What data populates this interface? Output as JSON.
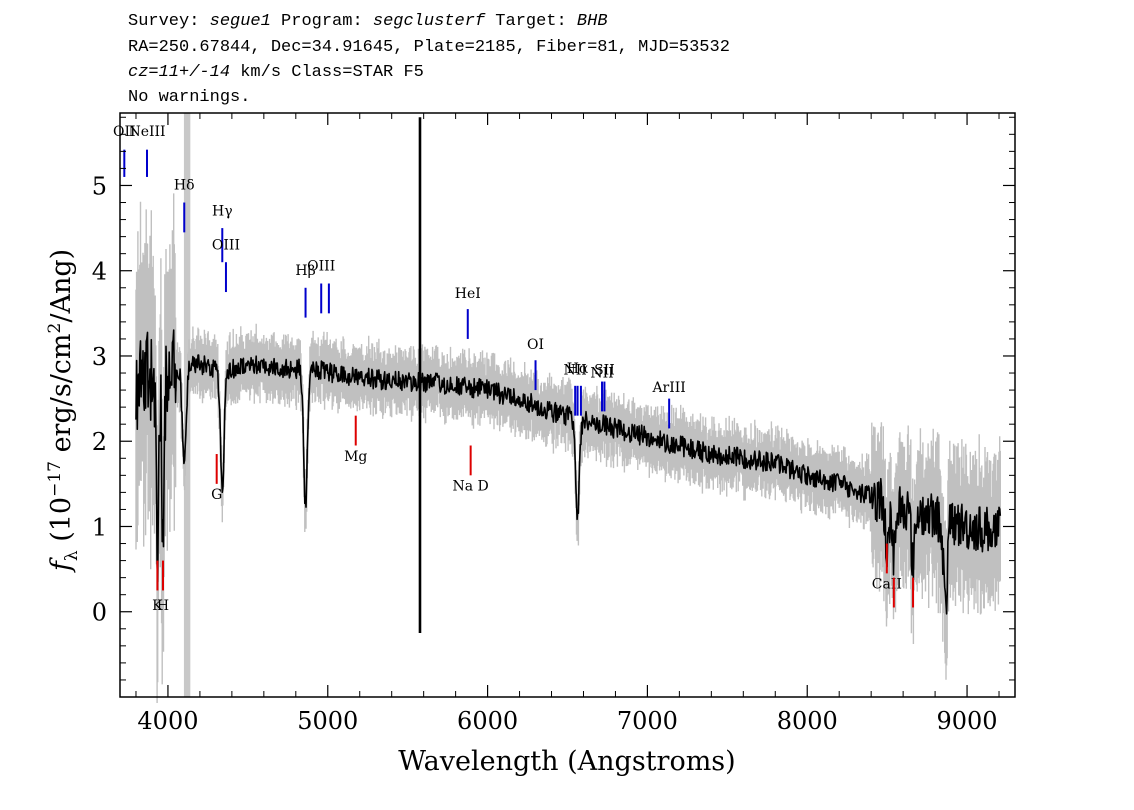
{
  "header": {
    "survey_label": "Survey: ",
    "survey": "segue1",
    "program_label": " Program: ",
    "program": "segclusterf",
    "target_label": " Target: ",
    "target": "BHB",
    "line2": "RA=250.67844, Dec=34.91645, Plate=2185, Fiber=81, MJD=53532",
    "cz": "cz=11+/-14",
    "cz_rest": " km/s Class=STAR F5",
    "warnings": "No warnings."
  },
  "colors": {
    "flux": "#000000",
    "error": "#c0c0c0",
    "emission": "#0000cc",
    "absorption": "#dd0000",
    "mask": "#c8c8c8"
  },
  "chart_data": {
    "type": "line",
    "title": "",
    "xlabel": "Wavelength (Angstroms)",
    "ylabel": "f_λ (10^-17 erg/s/cm^2/Ang)",
    "ylabel_parts": {
      "f": "f",
      "sub": "λ",
      "pre": " (10",
      "exp": "−17",
      "mid": " erg/s/cm",
      "exp2": "2",
      "post": "/Ang)"
    },
    "xlim": [
      3700,
      9300
    ],
    "ylim": [
      -1.0,
      5.85
    ],
    "x_ticks": [
      4000,
      5000,
      6000,
      7000,
      8000,
      9000
    ],
    "y_ticks": [
      0,
      1,
      2,
      3,
      4,
      5
    ],
    "masked_region": [
      4100,
      4140
    ],
    "spectrum_anchors": {
      "x": [
        3800,
        3850,
        3900,
        3950,
        4000,
        4050,
        4100,
        4150,
        4200,
        4300,
        4400,
        4500,
        4600,
        4700,
        4800,
        4900,
        5000,
        5200,
        5400,
        5600,
        5800,
        6000,
        6200,
        6400,
        6600,
        6800,
        7000,
        7200,
        7400,
        7600,
        7800,
        8000,
        8200,
        8400,
        8600,
        8800,
        9000,
        9200
      ],
      "y": [
        2.6,
        2.8,
        2.7,
        2.8,
        2.8,
        2.8,
        2.9,
        2.9,
        2.9,
        2.85,
        2.85,
        2.9,
        2.9,
        2.85,
        2.85,
        2.85,
        2.8,
        2.75,
        2.7,
        2.7,
        2.65,
        2.6,
        2.5,
        2.35,
        2.25,
        2.15,
        2.05,
        1.95,
        1.85,
        1.8,
        1.75,
        1.6,
        1.5,
        1.35,
        1.25,
        1.1,
        1.0,
        0.95
      ]
    },
    "absorption_features": [
      {
        "x": 3934,
        "depth": 2.0
      },
      {
        "x": 3969,
        "depth": 1.9
      },
      {
        "x": 4102,
        "depth": 1.2
      },
      {
        "x": 4340,
        "depth": 1.4
      },
      {
        "x": 4861,
        "depth": 1.6
      },
      {
        "x": 6563,
        "depth": 1.1
      },
      {
        "x": 8498,
        "depth": 0.5
      },
      {
        "x": 8542,
        "depth": 0.6
      },
      {
        "x": 8662,
        "depth": 0.6
      },
      {
        "x": 8865,
        "depth": 1.0
      }
    ],
    "spikes": [
      {
        "x": 5577,
        "lo": -0.25,
        "hi": 5.8
      }
    ],
    "emission_lines": [
      {
        "label": "OII",
        "x": 3727,
        "y0": 5.1,
        "y1": 5.42,
        "label_y": 5.58
      },
      {
        "label": "NeIII",
        "x": 3869,
        "y0": 5.1,
        "y1": 5.42,
        "label_y": 5.58
      },
      {
        "label": "Hδ",
        "x": 4102,
        "y0": 4.45,
        "y1": 4.8,
        "label_y": 4.95
      },
      {
        "label": "Hγ",
        "x": 4340,
        "y0": 4.1,
        "y1": 4.5,
        "label_y": 4.65
      },
      {
        "label": "OIII",
        "x": 4363,
        "y0": 3.75,
        "y1": 4.1,
        "label_y": 4.25
      },
      {
        "label": "Hβ",
        "x": 4861,
        "y0": 3.45,
        "y1": 3.8,
        "label_y": 3.95
      },
      {
        "label": "OIII",
        "x": 4959,
        "y0": 3.5,
        "y1": 3.85,
        "label_y": 4.0
      },
      {
        "label": "",
        "x": 5007,
        "y0": 3.5,
        "y1": 3.85,
        "label_y": 4.0
      },
      {
        "label": "HeI",
        "x": 5876,
        "y0": 3.2,
        "y1": 3.55,
        "label_y": 3.68
      },
      {
        "label": "OI",
        "x": 6300,
        "y0": 2.6,
        "y1": 2.95,
        "label_y": 3.08
      },
      {
        "label": "NII",
        "x": 6548,
        "y0": 2.3,
        "y1": 2.65,
        "label_y": 2.78
      },
      {
        "label": "Hα",
        "x": 6563,
        "y0": 2.3,
        "y1": 2.65,
        "label_y": 2.8
      },
      {
        "label": "",
        "x": 6584,
        "y0": 2.3,
        "y1": 2.65,
        "label_y": 2.78
      },
      {
        "label": "NII",
        "x": 6716,
        "y0": 2.35,
        "y1": 2.7,
        "label_y": 2.75
      },
      {
        "label": "SII",
        "x": 6731,
        "y0": 2.35,
        "y1": 2.7,
        "label_y": 2.78
      },
      {
        "label": "ArIII",
        "x": 7136,
        "y0": 2.15,
        "y1": 2.5,
        "label_y": 2.58
      }
    ],
    "absorption_lines": [
      {
        "label": "K",
        "x": 3934,
        "y0": 0.25,
        "y1": 0.6,
        "label_y": 0.02
      },
      {
        "label": "H",
        "x": 3969,
        "y0": 0.25,
        "y1": 0.6,
        "label_y": 0.02
      },
      {
        "label": "G",
        "x": 4305,
        "y0": 1.5,
        "y1": 1.85,
        "label_y": 1.32
      },
      {
        "label": "Mg",
        "x": 5175,
        "y0": 1.95,
        "y1": 2.3,
        "label_y": 1.77
      },
      {
        "label": "Na D",
        "x": 5894,
        "y0": 1.6,
        "y1": 1.95,
        "label_y": 1.42
      },
      {
        "label": "CaII",
        "x": 8498,
        "y0": 0.45,
        "y1": 0.8,
        "label_y": 0.27
      },
      {
        "label": "",
        "x": 8542,
        "y0": 0.05,
        "y1": 0.4,
        "label_y": 0
      },
      {
        "label": "",
        "x": 8662,
        "y0": 0.05,
        "y1": 0.4,
        "label_y": 0
      }
    ]
  }
}
